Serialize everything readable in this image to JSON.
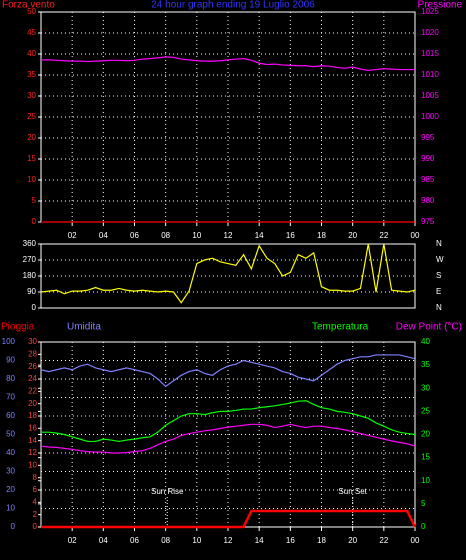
{
  "chart_data": [
    {
      "type": "line",
      "title": "24 hour graph ending 19 Luglio 2006",
      "title_color": "#3333ff",
      "ylabel": "Forza vento",
      "y2label": "Pressione",
      "xlim": [
        0,
        24
      ],
      "xticks": [
        {
          "value": 2,
          "label": "02"
        },
        {
          "value": 4,
          "label": "04"
        },
        {
          "value": 6,
          "label": "06"
        },
        {
          "value": 8,
          "label": "08"
        },
        10,
        12,
        14,
        16,
        18,
        20,
        22,
        {
          "value": 24,
          "label": "00"
        }
      ],
      "ylim": [
        0,
        50
      ],
      "yticks": [
        0,
        5,
        10,
        15,
        20,
        25,
        30,
        35,
        40,
        45,
        50
      ],
      "ycolor": "#ff2020",
      "y2lim": [
        975,
        1025
      ],
      "y2ticks": [
        975,
        980,
        985,
        990,
        995,
        1000,
        1005,
        1010,
        1015,
        1020,
        1025
      ],
      "y2color": "#ff00ff",
      "grid": true,
      "x": [
        0,
        0.5,
        1,
        1.5,
        2,
        2.5,
        3,
        3.5,
        4,
        4.5,
        5,
        5.5,
        6,
        6.5,
        7,
        7.5,
        8,
        8.5,
        9,
        9.5,
        10,
        10.5,
        11,
        11.5,
        12,
        12.5,
        13,
        13.5,
        14,
        14.5,
        15,
        15.5,
        16,
        16.5,
        17,
        17.5,
        18,
        18.5,
        19,
        19.5,
        20,
        20.5,
        21,
        21.5,
        22,
        22.5,
        23,
        23.5,
        24
      ],
      "series": [
        {
          "color": "#ff0000",
          "values": [
            0,
            0,
            0,
            0,
            0,
            0,
            0,
            0,
            0,
            0,
            0,
            0,
            0,
            0,
            0,
            0,
            0,
            0,
            0,
            0,
            0,
            0,
            0,
            0,
            0,
            0,
            0,
            0,
            0,
            0,
            0,
            0,
            0,
            0,
            0,
            0,
            0,
            0,
            0,
            0,
            0,
            0,
            0,
            0,
            0,
            0,
            0,
            0,
            0
          ]
        },
        {
          "color": "#ff00ff",
          "axis": "y2",
          "values": [
            1013.6,
            1013.6,
            1013.5,
            1013.4,
            1013.3,
            1013.3,
            1013.2,
            1013.3,
            1013.4,
            1013.5,
            1013.5,
            1013.4,
            1013.5,
            1013.8,
            1013.9,
            1014.1,
            1014.3,
            1014.2,
            1013.8,
            1013.6,
            1013.4,
            1013.3,
            1013.3,
            1013.4,
            1013.6,
            1013.8,
            1013.9,
            1013.5,
            1012.8,
            1012.5,
            1012.6,
            1012.4,
            1012.3,
            1012.2,
            1012.2,
            1012.0,
            1012.2,
            1012.1,
            1011.8,
            1011.6,
            1011.9,
            1011.4,
            1011.1,
            1011.3,
            1011.5,
            1011.4,
            1011.3,
            1011.3,
            1011.3
          ]
        }
      ]
    },
    {
      "type": "line",
      "xlim": [
        0,
        24
      ],
      "ylim": [
        0,
        360
      ],
      "yticks": [
        0,
        90,
        180,
        270,
        360
      ],
      "ycolor": "#ffffff",
      "y2lim": [
        0,
        360
      ],
      "y2ticks": [
        {
          "value": 0,
          "label": "N"
        },
        {
          "value": 90,
          "label": "E"
        },
        {
          "value": 180,
          "label": "S"
        },
        {
          "value": 270,
          "label": "W"
        },
        {
          "value": 360,
          "label": "N"
        }
      ],
      "y2color": "#ffffff",
      "grid": true,
      "x": [
        0,
        0.5,
        1,
        1.5,
        2,
        2.5,
        3,
        3.5,
        4,
        4.5,
        5,
        5.5,
        6,
        6.5,
        7,
        7.5,
        8,
        8.5,
        9,
        9.5,
        10,
        10.5,
        11,
        11.5,
        12,
        12.5,
        13,
        13.5,
        14,
        14.5,
        15,
        15.5,
        16,
        16.5,
        17,
        17.5,
        18,
        18.5,
        19,
        19.5,
        20,
        20.5,
        21,
        21.5,
        22,
        22.5,
        23,
        23.5,
        24
      ],
      "series": [
        {
          "color": "#ffff00",
          "values": [
            90,
            95,
            100,
            80,
            95,
            95,
            100,
            115,
            100,
            100,
            110,
            100,
            95,
            100,
            95,
            90,
            95,
            90,
            30,
            95,
            250,
            270,
            280,
            260,
            250,
            240,
            300,
            220,
            350,
            280,
            250,
            180,
            200,
            300,
            280,
            310,
            120,
            100,
            100,
            95,
            95,
            110,
            360,
            90,
            360,
            100,
            95,
            90,
            100
          ]
        }
      ]
    },
    {
      "type": "line",
      "xlim": [
        0,
        24
      ],
      "xticks": [
        {
          "value": 2,
          "label": "02"
        },
        {
          "value": 4,
          "label": "04"
        },
        {
          "value": 6,
          "label": "06"
        },
        {
          "value": 8,
          "label": "08"
        },
        10,
        12,
        14,
        16,
        18,
        20,
        22,
        {
          "value": 24,
          "label": "00"
        }
      ],
      "ylim": [
        0,
        100
      ],
      "yticks": [
        0,
        10,
        20,
        30,
        40,
        50,
        60,
        70,
        80,
        90,
        100
      ],
      "ycolor": "#8080ff",
      "y3lim": [
        0,
        30
      ],
      "y3ticks": [
        0,
        2,
        4,
        6,
        8,
        10,
        12,
        14,
        16,
        18,
        20,
        22,
        24,
        26,
        28,
        30
      ],
      "y3color": "#ff4040",
      "y2lim": [
        0,
        40
      ],
      "y2ticks": [
        0,
        5,
        10,
        15,
        20,
        25,
        30,
        35,
        40
      ],
      "y2color": "#00ff00",
      "grid": true,
      "annotations": [
        {
          "x": 8.1,
          "label": "Sun Rise"
        },
        {
          "x": 20,
          "label": "Sun Set"
        }
      ],
      "x": [
        0,
        0.5,
        1,
        1.5,
        2,
        2.5,
        3,
        3.5,
        4,
        4.5,
        5,
        5.5,
        6,
        6.5,
        7,
        7.5,
        8,
        8.5,
        9,
        9.5,
        10,
        10.5,
        11,
        11.5,
        12,
        12.5,
        13,
        13.5,
        14,
        14.5,
        15,
        15.5,
        16,
        16.5,
        17,
        17.5,
        18,
        18.5,
        19,
        19.5,
        20,
        20.5,
        21,
        21.5,
        22,
        22.5,
        23,
        23.5,
        24
      ],
      "series": [
        {
          "name": "Pioggia",
          "color": "#ff0000",
          "axis": "y3",
          "values": [
            0,
            0,
            0,
            0,
            0,
            0,
            0,
            0,
            0,
            0,
            0,
            0,
            0,
            0,
            0,
            0,
            0,
            0,
            0,
            0,
            0,
            0,
            0,
            0,
            0,
            0,
            0,
            2.6,
            2.6,
            2.6,
            2.6,
            2.6,
            2.6,
            2.6,
            2.6,
            2.6,
            2.6,
            2.6,
            2.6,
            2.6,
            2.6,
            2.6,
            2.6,
            2.6,
            2.6,
            2.6,
            2.6,
            2.6,
            0
          ]
        },
        {
          "name": "Umidita",
          "color": "#8080ff",
          "values": [
            85,
            84,
            85,
            86,
            85,
            87,
            88,
            86,
            85,
            84,
            85,
            86,
            85,
            84,
            83,
            80,
            76,
            79,
            82,
            84,
            85,
            83,
            82,
            85,
            87,
            88,
            90,
            89,
            88,
            87,
            86,
            84,
            83,
            81,
            80,
            79,
            82,
            85,
            88,
            90,
            91,
            92,
            92,
            93,
            93,
            93,
            93,
            92,
            91
          ]
        },
        {
          "name": "Temperatura",
          "color": "#00ff00",
          "axis": "y2",
          "values": [
            20.5,
            20.5,
            20.3,
            20.0,
            19.5,
            19.0,
            18.5,
            18.5,
            19.0,
            18.8,
            18.5,
            18.8,
            19.0,
            19.3,
            19.5,
            20.5,
            22,
            23,
            24,
            24.5,
            24.5,
            24.3,
            24.7,
            25,
            25,
            25.2,
            25.5,
            25.5,
            25.8,
            26,
            26.2,
            26.5,
            26.8,
            27.2,
            27.3,
            26.5,
            25.8,
            25.5,
            25.0,
            24.8,
            24.5,
            24.0,
            23.5,
            22.5,
            21.8,
            21.0,
            20.5,
            20.2,
            20.0
          ]
        },
        {
          "name": "Dew Point (°C)",
          "color": "#ff00ff",
          "axis": "y2",
          "values": [
            17.5,
            17.3,
            17.2,
            17.0,
            16.8,
            16.5,
            16.3,
            16.2,
            16.2,
            16.0,
            16.0,
            16.1,
            16.3,
            16.5,
            17,
            17.8,
            18.5,
            19,
            19.8,
            20.2,
            20.5,
            20.8,
            21.0,
            21.3,
            21.6,
            21.8,
            22.0,
            22.2,
            22.2,
            22.0,
            21.5,
            21.8,
            22.2,
            21.8,
            21.5,
            21.8,
            21.8,
            21.5,
            21.3,
            21.0,
            20.6,
            20.2,
            19.8,
            19.4,
            19.0,
            18.6,
            18.3,
            18.0,
            17.5
          ]
        }
      ]
    }
  ]
}
